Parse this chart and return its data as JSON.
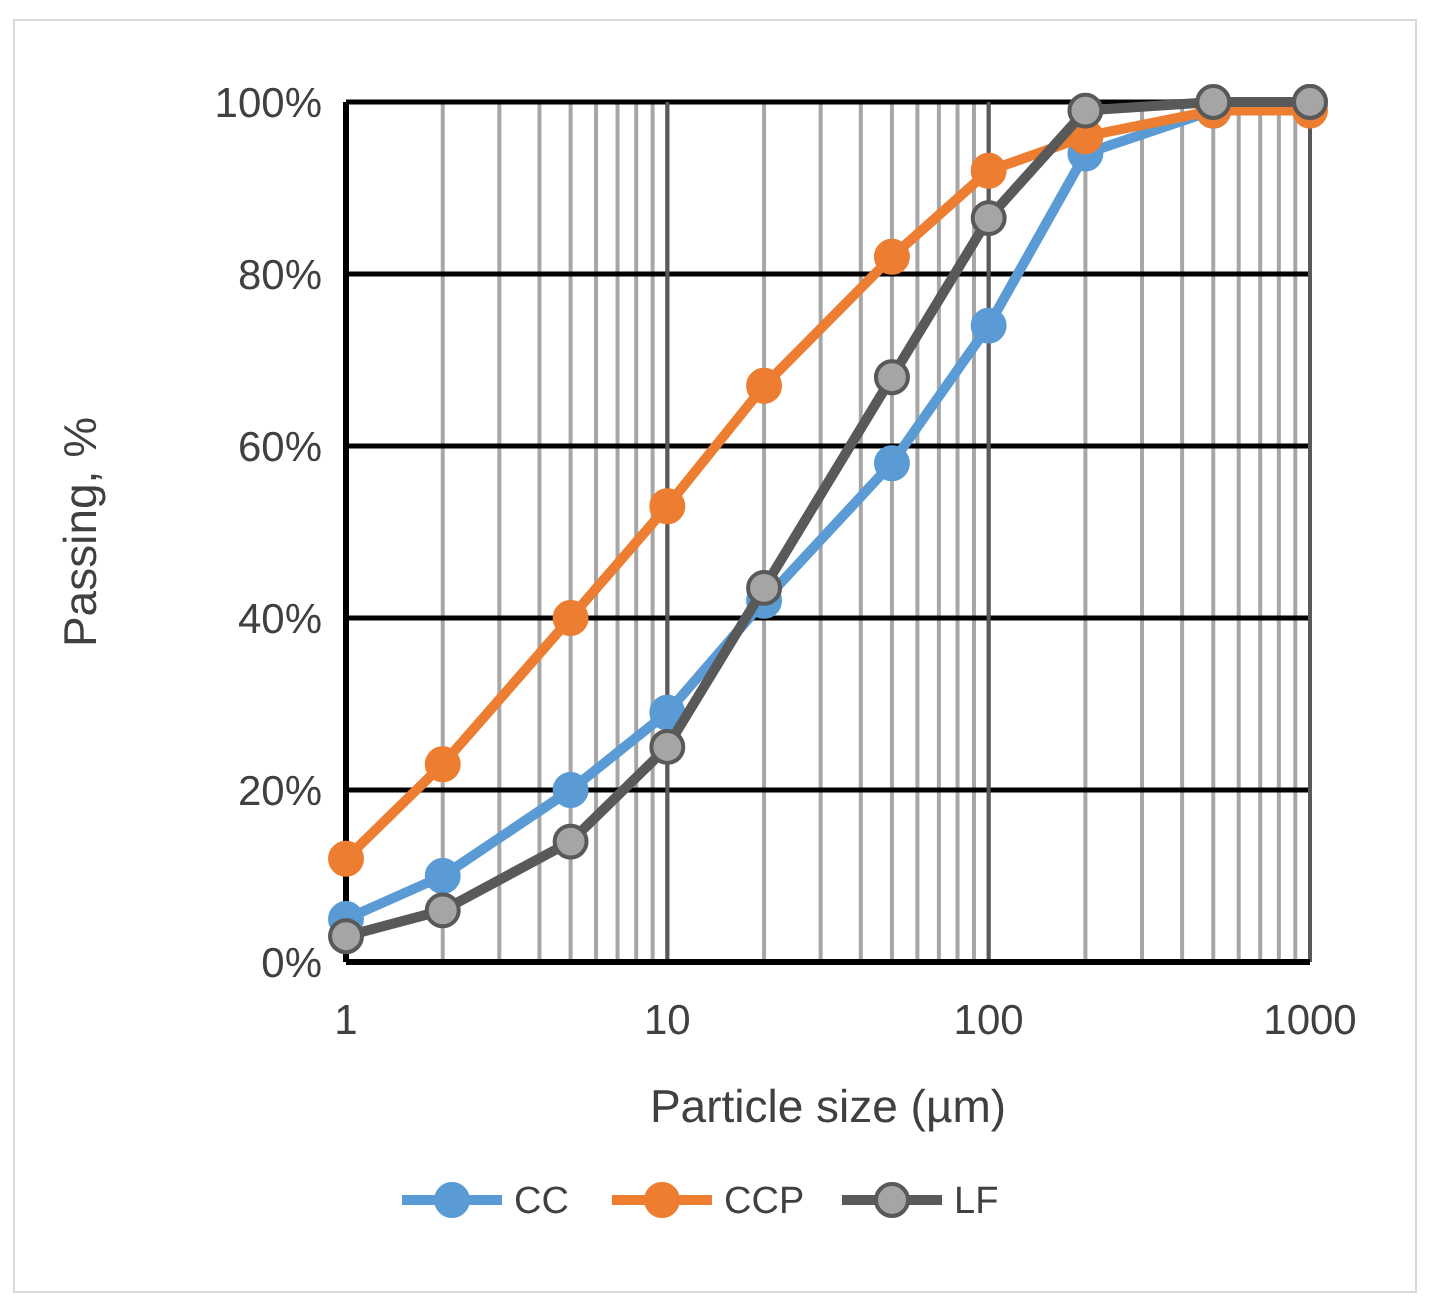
{
  "chart_data": {
    "type": "line",
    "xlabel": "Particle size (µm)",
    "ylabel": "Passing, %",
    "log": "x",
    "grid": true,
    "legend": "bottom",
    "marker": "circle",
    "line_style": "solid",
    "x": [
      1,
      2,
      5,
      10,
      20,
      50,
      100,
      200,
      500,
      1000
    ],
    "xlim": [
      1,
      1000
    ],
    "xticks": [
      1,
      10,
      100,
      1000
    ],
    "ylim": [
      0,
      100
    ],
    "yticks": [
      {
        "value": 0,
        "label": "0%"
      },
      {
        "value": 20,
        "label": "20%"
      },
      {
        "value": 40,
        "label": "40%"
      },
      {
        "value": 60,
        "label": "60%"
      },
      {
        "value": 80,
        "label": "80%"
      },
      {
        "value": 100,
        "label": "100%"
      }
    ],
    "series": [
      {
        "name": "CC",
        "color": "#5b9bd5",
        "values": [
          5,
          10,
          20,
          29,
          42,
          58,
          74,
          94,
          99,
          100
        ]
      },
      {
        "name": "CCP",
        "color": "#ed7d31",
        "values": [
          12,
          23,
          40,
          53,
          67,
          82,
          92,
          96,
          99,
          99
        ]
      },
      {
        "name": "LF",
        "color": "#595959",
        "values": [
          3,
          6,
          14,
          25,
          43.5,
          68,
          86.5,
          99,
          100,
          100
        ]
      }
    ]
  }
}
